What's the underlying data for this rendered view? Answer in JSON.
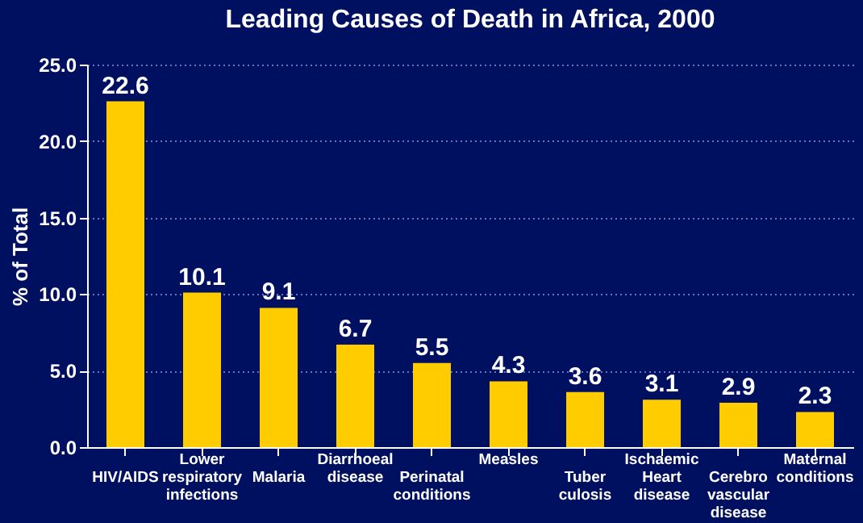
{
  "chart_data": {
    "type": "bar",
    "title": "Leading Causes of Death in Africa, 2000",
    "ylabel": "% of Total",
    "categories": [
      "HIV/AIDS",
      "Lower respiratory infections",
      "Malaria",
      "Diarrhoeal disease",
      "Perinatal conditions",
      "Measles",
      "Tuber culosis",
      "Ischaemic Heart disease",
      "Cerebro vascular disease",
      "Maternal conditions"
    ],
    "values": [
      22.6,
      10.1,
      9.1,
      6.7,
      5.5,
      4.3,
      3.6,
      3.1,
      2.9,
      2.3
    ],
    "color": "#ffcc00",
    "ylim": [
      0,
      25
    ],
    "yticks": [
      {
        "value": 0,
        "label": "0.0"
      },
      {
        "value": 5,
        "label": "5.0"
      },
      {
        "value": 10,
        "label": "10.0"
      },
      {
        "value": 15,
        "label": "15.0"
      },
      {
        "value": 20,
        "label": "20.0"
      },
      {
        "value": 25,
        "label": "25.0"
      }
    ],
    "grid": "y",
    "data_labels": true
  }
}
